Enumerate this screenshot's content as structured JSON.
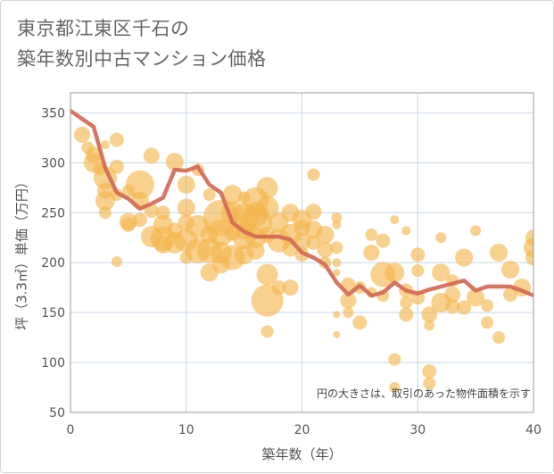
{
  "title_lines": [
    "東京都江東区千石の",
    "築年数別中古マンション価格"
  ],
  "colors": {
    "bubble": "#f3b54a",
    "line": "#d26a55",
    "grid": "#c8d6e6",
    "plot_border": "#999999"
  },
  "chart_data": {
    "type": "scatter",
    "xlabel": "築年数（年）",
    "ylabel": "坪（3.3㎡）単価（万円）",
    "xlim": [
      0,
      40
    ],
    "ylim": [
      50,
      370
    ],
    "xticks": [
      0,
      10,
      20,
      30,
      40
    ],
    "yticks": [
      50,
      100,
      150,
      200,
      250,
      300,
      350
    ],
    "grid": true,
    "note": "円の大きさは、取引のあった物件面積を示す",
    "scatter": [
      [
        1,
        328,
        9
      ],
      [
        1.5,
        315,
        7
      ],
      [
        2,
        308,
        9
      ],
      [
        2,
        300,
        11
      ],
      [
        2.5,
        294,
        7
      ],
      [
        3,
        318,
        5
      ],
      [
        3,
        285,
        13
      ],
      [
        3,
        272,
        9
      ],
      [
        3,
        262,
        11
      ],
      [
        3,
        250,
        7
      ],
      [
        4,
        323,
        8
      ],
      [
        4,
        296,
        8
      ],
      [
        4,
        268,
        7
      ],
      [
        4,
        201,
        6
      ],
      [
        5,
        241,
        10
      ],
      [
        5,
        238,
        8
      ],
      [
        5,
        272,
        7
      ],
      [
        6,
        278,
        16
      ],
      [
        6,
        262,
        10
      ],
      [
        6,
        243,
        8
      ],
      [
        7,
        307,
        9
      ],
      [
        7,
        252,
        8
      ],
      [
        7,
        226,
        12
      ],
      [
        8,
        238,
        11
      ],
      [
        8,
        224,
        14
      ],
      [
        8,
        218,
        10
      ],
      [
        8,
        250,
        8
      ],
      [
        9,
        301,
        10
      ],
      [
        9,
        232,
        9
      ],
      [
        9,
        220,
        12
      ],
      [
        10,
        278,
        10
      ],
      [
        10,
        255,
        10
      ],
      [
        10,
        240,
        9
      ],
      [
        10,
        222,
        13
      ],
      [
        10,
        205,
        7
      ],
      [
        11,
        236,
        13
      ],
      [
        11,
        212,
        14
      ],
      [
        11,
        293,
        7
      ],
      [
        12,
        268,
        7
      ],
      [
        12,
        228,
        10
      ],
      [
        12,
        212,
        14
      ],
      [
        12,
        190,
        10
      ],
      [
        13,
        245,
        20
      ],
      [
        13,
        230,
        15
      ],
      [
        13,
        210,
        12
      ],
      [
        13,
        198,
        10
      ],
      [
        14,
        268,
        11
      ],
      [
        14,
        250,
        13
      ],
      [
        14,
        230,
        9
      ],
      [
        14,
        205,
        14
      ],
      [
        15,
        265,
        7
      ],
      [
        15,
        245,
        16
      ],
      [
        15,
        232,
        10
      ],
      [
        15,
        225,
        13
      ],
      [
        15,
        208,
        11
      ],
      [
        16,
        262,
        15
      ],
      [
        16,
        248,
        14
      ],
      [
        16,
        240,
        18
      ],
      [
        16,
        225,
        12
      ],
      [
        16,
        212,
        10
      ],
      [
        17,
        275,
        12
      ],
      [
        17,
        255,
        13
      ],
      [
        17,
        228,
        9
      ],
      [
        17,
        188,
        12
      ],
      [
        17,
        162,
        18
      ],
      [
        17,
        131,
        7
      ],
      [
        18,
        240,
        11
      ],
      [
        18,
        222,
        13
      ],
      [
        18,
        175,
        8
      ],
      [
        19,
        250,
        10
      ],
      [
        19,
        228,
        12
      ],
      [
        19,
        214,
        9
      ],
      [
        19,
        175,
        9
      ],
      [
        20,
        243,
        11
      ],
      [
        20,
        235,
        9
      ],
      [
        20,
        221,
        10
      ],
      [
        20,
        208,
        8
      ],
      [
        21,
        288,
        7
      ],
      [
        21,
        251,
        9
      ],
      [
        21,
        233,
        10
      ],
      [
        21,
        220,
        8
      ],
      [
        22,
        228,
        10
      ],
      [
        22,
        213,
        9
      ],
      [
        22,
        200,
        7
      ],
      [
        23,
        245,
        6
      ],
      [
        23,
        238,
        5
      ],
      [
        23,
        215,
        7
      ],
      [
        23,
        200,
        5
      ],
      [
        23,
        190,
        4
      ],
      [
        23,
        148,
        4
      ],
      [
        23,
        128,
        4
      ],
      [
        24,
        178,
        8
      ],
      [
        24,
        162,
        9
      ],
      [
        24,
        150,
        6
      ],
      [
        25,
        140,
        8
      ],
      [
        25,
        175,
        7
      ],
      [
        26,
        228,
        7
      ],
      [
        26,
        210,
        9
      ],
      [
        26,
        170,
        6
      ],
      [
        27,
        222,
        8
      ],
      [
        27,
        188,
        14
      ],
      [
        27,
        167,
        7
      ],
      [
        28,
        243,
        5
      ],
      [
        28,
        190,
        11
      ],
      [
        28,
        103,
        7
      ],
      [
        28,
        75,
        6
      ],
      [
        29,
        232,
        5
      ],
      [
        29,
        172,
        8
      ],
      [
        29,
        160,
        7
      ],
      [
        29,
        148,
        8
      ],
      [
        30,
        208,
        8
      ],
      [
        30,
        192,
        7
      ],
      [
        30,
        165,
        8
      ],
      [
        31,
        148,
        9
      ],
      [
        31,
        137,
        6
      ],
      [
        31,
        91,
        8
      ],
      [
        31,
        79,
        7
      ],
      [
        32,
        225,
        6
      ],
      [
        32,
        190,
        10
      ],
      [
        32,
        160,
        11
      ],
      [
        33,
        182,
        7
      ],
      [
        33,
        168,
        9
      ],
      [
        33,
        156,
        8
      ],
      [
        34,
        205,
        10
      ],
      [
        34,
        155,
        8
      ],
      [
        35,
        232,
        6
      ],
      [
        35,
        165,
        10
      ],
      [
        36,
        140,
        7
      ],
      [
        36,
        157,
        7
      ],
      [
        37,
        210,
        10
      ],
      [
        37,
        125,
        7
      ],
      [
        38,
        193,
        10
      ],
      [
        38,
        168,
        8
      ],
      [
        39,
        175,
        10
      ],
      [
        40,
        225,
        9
      ],
      [
        40,
        215,
        11
      ],
      [
        40,
        205,
        9
      ]
    ],
    "line": [
      [
        0,
        352
      ],
      [
        1,
        344
      ],
      [
        2,
        336
      ],
      [
        3,
        295
      ],
      [
        4,
        270
      ],
      [
        5,
        264
      ],
      [
        6,
        254
      ],
      [
        7,
        259
      ],
      [
        8,
        265
      ],
      [
        9,
        293
      ],
      [
        10,
        292
      ],
      [
        11,
        296
      ],
      [
        12,
        278
      ],
      [
        13,
        270
      ],
      [
        14,
        240
      ],
      [
        15,
        231
      ],
      [
        16,
        226
      ],
      [
        17,
        226
      ],
      [
        18,
        226
      ],
      [
        19,
        223
      ],
      [
        20,
        210
      ],
      [
        21,
        205
      ],
      [
        22,
        198
      ],
      [
        23,
        180
      ],
      [
        24,
        168
      ],
      [
        25,
        177
      ],
      [
        26,
        167
      ],
      [
        27,
        170
      ],
      [
        28,
        180
      ],
      [
        29,
        172
      ],
      [
        30,
        169
      ],
      [
        31,
        173
      ],
      [
        32,
        176
      ],
      [
        33,
        179
      ],
      [
        34,
        182
      ],
      [
        35,
        172
      ],
      [
        36,
        176
      ],
      [
        37,
        176
      ],
      [
        38,
        176
      ],
      [
        39,
        172
      ],
      [
        40,
        167
      ]
    ]
  }
}
